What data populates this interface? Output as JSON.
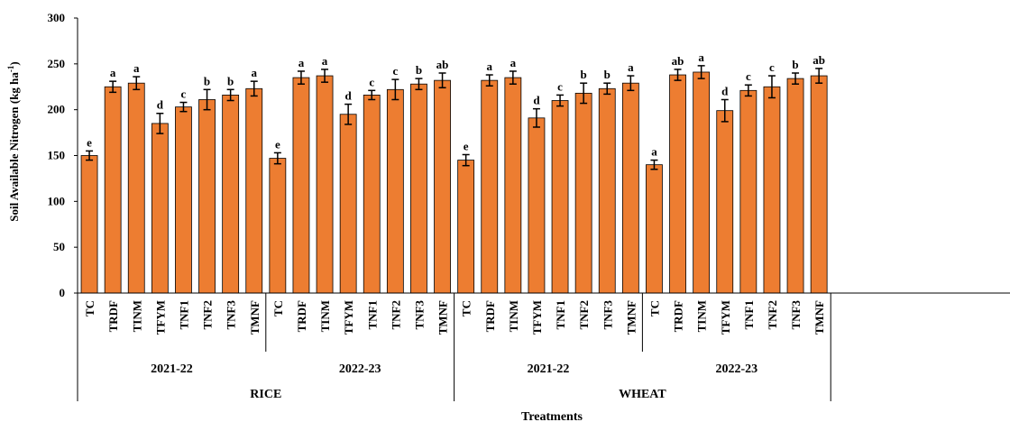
{
  "chart_data": {
    "type": "bar",
    "ylabel": "Soil Available Nitrogen (kg ha",
    "ylabel_sup": "-1",
    "ylabel_close": ")",
    "xlabel": "Treatments",
    "ylim": [
      0,
      300
    ],
    "yticks": [
      0,
      50,
      100,
      150,
      200,
      250,
      300
    ],
    "grid": false,
    "bar_color": "#ED7D31",
    "crops": [
      {
        "name": "RICE",
        "years": [
          {
            "name": "2021-22",
            "categories": [
              "TC",
              "TRDF",
              "TINM",
              "TFYM",
              "TNF1",
              "TNF2",
              "TNF3",
              "TMNF"
            ],
            "values": [
              150,
              225,
              229,
              185,
              203,
              211,
              216,
              223
            ],
            "errors": [
              5,
              6,
              7,
              11,
              5,
              11,
              6,
              8
            ],
            "letters": [
              "e",
              "a",
              "a",
              "d",
              "c",
              "b",
              "b",
              "a"
            ]
          },
          {
            "name": "2022-23",
            "categories": [
              "TC",
              "TRDF",
              "TINM",
              "TFYM",
              "TNF1",
              "TNF2",
              "TNF3",
              "TMNF"
            ],
            "values": [
              147,
              235,
              237,
              195,
              216,
              222,
              228,
              232
            ],
            "errors": [
              6,
              7,
              7,
              11,
              5,
              11,
              6,
              8
            ],
            "letters": [
              "e",
              "a",
              "a",
              "d",
              "c",
              "c",
              "b",
              "ab"
            ]
          }
        ]
      },
      {
        "name": "WHEAT",
        "years": [
          {
            "name": "2021-22",
            "categories": [
              "TC",
              "TRDF",
              "TINM",
              "TFYM",
              "TNF1",
              "TNF2",
              "TNF3",
              "TMNF"
            ],
            "values": [
              145,
              232,
              235,
              191,
              210,
              218,
              223,
              229
            ],
            "errors": [
              6,
              6,
              7,
              10,
              6,
              11,
              6,
              8
            ],
            "letters": [
              "e",
              "a",
              "a",
              "d",
              "c",
              "b",
              "b",
              "a"
            ]
          },
          {
            "name": "2022-23",
            "categories": [
              "TC",
              "TRDF",
              "TINM",
              "TFYM",
              "TNF1",
              "TNF2",
              "TNF3",
              "TMNF"
            ],
            "values": [
              140,
              238,
              241,
              199,
              221,
              225,
              234,
              237
            ],
            "errors": [
              5,
              6,
              7,
              12,
              6,
              12,
              6,
              8
            ],
            "letters": [
              "a",
              "ab",
              "a",
              "d",
              "c",
              "c",
              "b",
              "ab"
            ]
          }
        ]
      }
    ]
  }
}
